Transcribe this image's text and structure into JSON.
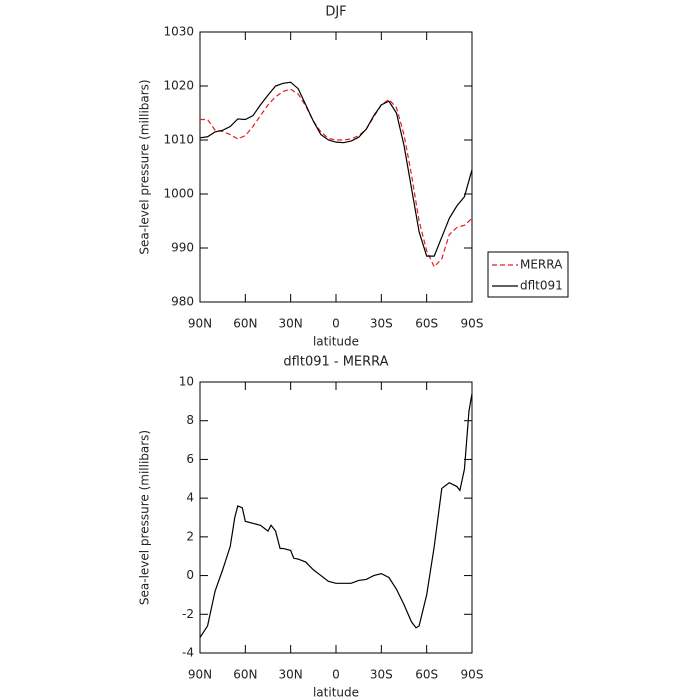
{
  "chart_data": [
    {
      "type": "line",
      "title": "DJF",
      "xlabel": "latitude",
      "ylabel": "Sea-level pressure (millibars)",
      "x": [
        90,
        85,
        80,
        75,
        70,
        65,
        60,
        55,
        50,
        45,
        40,
        35,
        30,
        25,
        20,
        15,
        10,
        5,
        0,
        -5,
        -10,
        -15,
        -20,
        -25,
        -30,
        -35,
        -40,
        -45,
        -50,
        -55,
        -60,
        -65,
        -70,
        -75,
        -80,
        -85,
        -90
      ],
      "series": [
        {
          "name": "MERRA",
          "color": "#e8191f",
          "dash": true,
          "values": [
            1013.8,
            1013.8,
            1011.8,
            1011.6,
            1011,
            1010.2,
            1010.8,
            1012.5,
            1014.5,
            1016.5,
            1018,
            1019,
            1019.4,
            1018.5,
            1016.3,
            1013.5,
            1011.5,
            1010.3,
            1010,
            1010,
            1010.2,
            1010.8,
            1012,
            1014.3,
            1016.5,
            1017.5,
            1016,
            1011,
            1003.5,
            995,
            989.5,
            986.5,
            988,
            992.5,
            993.8,
            994.2,
            995.5
          ]
        },
        {
          "name": "dflt091",
          "color": "#000000",
          "dash": false,
          "values": [
            1010.4,
            1010.6,
            1011.5,
            1011.8,
            1012.5,
            1013.9,
            1013.8,
            1014.5,
            1016.5,
            1018.3,
            1020,
            1020.5,
            1020.7,
            1019.5,
            1016.5,
            1013.5,
            1011,
            1010,
            1009.6,
            1009.5,
            1009.8,
            1010.5,
            1012,
            1014.5,
            1016.5,
            1017.2,
            1015,
            1009,
            1001,
            993,
            988.5,
            988.5,
            992,
            995.5,
            997.8,
            999.5,
            1004.5
          ]
        }
      ],
      "xlim": [
        90,
        -90
      ],
      "xticks": [
        {
          "value": 90,
          "label": "90N"
        },
        {
          "value": 60,
          "label": "60N"
        },
        {
          "value": 30,
          "label": "30N"
        },
        0,
        {
          "value": -30,
          "label": "30S"
        },
        {
          "value": -60,
          "label": "60S"
        },
        {
          "value": -90,
          "label": "90S"
        }
      ],
      "ylim": [
        980,
        1030
      ],
      "yticks": [
        980,
        990,
        1000,
        1010,
        1020,
        1030
      ],
      "legend": "right"
    },
    {
      "type": "line",
      "title": "dflt091 - MERRA",
      "xlabel": "latitude",
      "ylabel": "Sea-level pressure (millibars)",
      "x": [
        90,
        85,
        80,
        75,
        70,
        67,
        65,
        62,
        60,
        55,
        50,
        45,
        43,
        40,
        37,
        35,
        30,
        28,
        25,
        20,
        15,
        10,
        5,
        0,
        -5,
        -10,
        -15,
        -20,
        -25,
        -30,
        -35,
        -40,
        -45,
        -50,
        -53,
        -55,
        -60,
        -65,
        -70,
        -75,
        -80,
        -82,
        -85,
        -88,
        -90
      ],
      "values": [
        -3.2,
        -2.6,
        -0.8,
        0.3,
        1.5,
        3.0,
        3.6,
        3.5,
        2.8,
        2.7,
        2.6,
        2.3,
        2.6,
        2.3,
        1.4,
        1.4,
        1.3,
        0.9,
        0.85,
        0.7,
        0.3,
        0.0,
        -0.3,
        -0.4,
        -0.4,
        -0.4,
        -0.25,
        -0.2,
        0,
        0.1,
        -0.1,
        -0.7,
        -1.5,
        -2.4,
        -2.7,
        -2.6,
        -1.0,
        1.5,
        4.5,
        4.8,
        4.6,
        4.4,
        5.5,
        8.5,
        9.4
      ],
      "color": "#000000",
      "xlim": [
        90,
        -90
      ],
      "xticks": [
        {
          "value": 90,
          "label": "90N"
        },
        {
          "value": 60,
          "label": "60N"
        },
        {
          "value": 30,
          "label": "30N"
        },
        0,
        {
          "value": -30,
          "label": "30S"
        },
        {
          "value": -60,
          "label": "60S"
        },
        {
          "value": -90,
          "label": "90S"
        }
      ],
      "ylim": [
        -4,
        10
      ],
      "yticks": [
        -4,
        -2,
        0,
        2,
        4,
        6,
        8,
        10
      ]
    }
  ]
}
